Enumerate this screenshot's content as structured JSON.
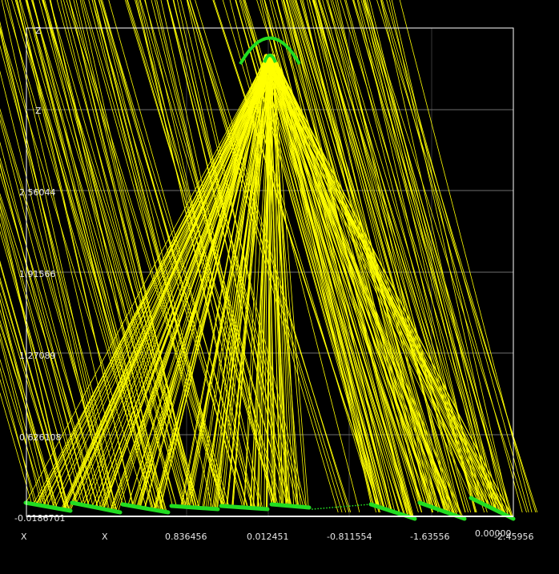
{
  "chart_data": {
    "type": "3d-ray-trace",
    "background": "#000000",
    "ray_color": "#ffff00",
    "mirror_color": "#22dd22",
    "grid_color": "#6e6e6e",
    "axis_titles": [
      "X",
      "X",
      "Z",
      "Z"
    ],
    "y_ticks": [
      "-0.0186701",
      "0.626108",
      "1.27089",
      "1.91566",
      "2.56044"
    ],
    "x_ticks": [
      "0.836456",
      "0.012451",
      "-0.811554",
      "-1.63556",
      "-2.45956"
    ],
    "overlap_label": "0.00000"
  }
}
